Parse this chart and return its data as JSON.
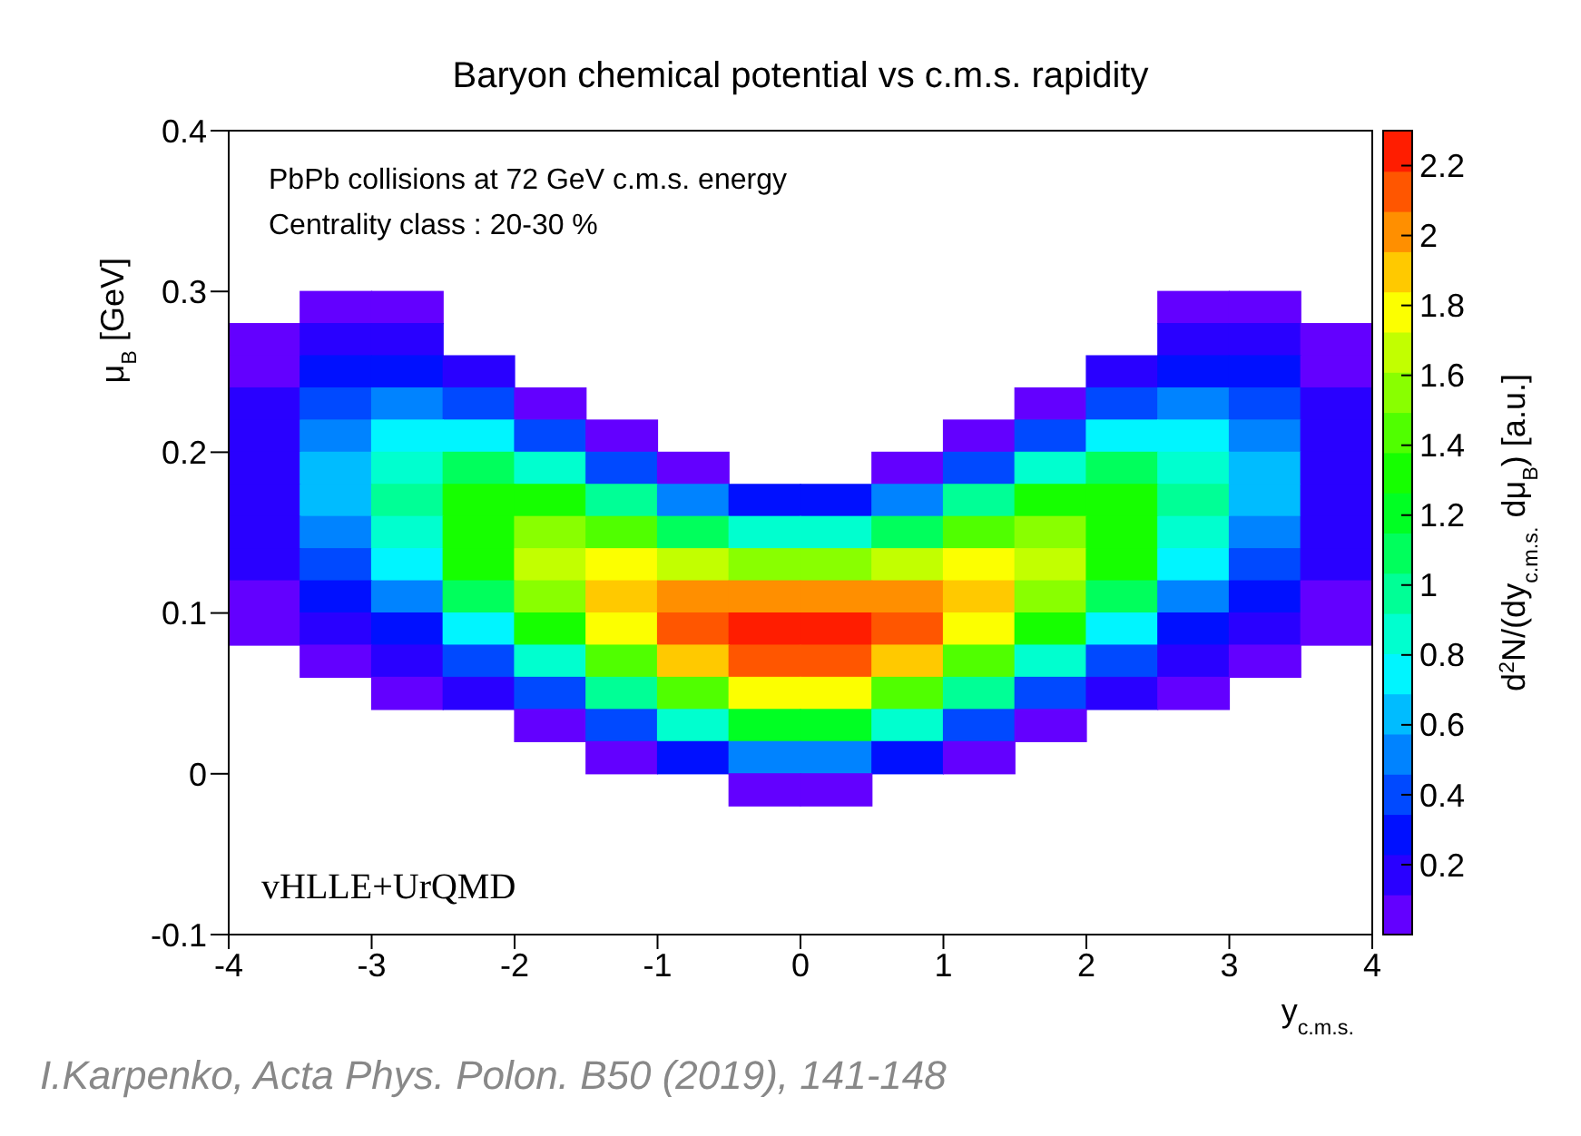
{
  "chart_data": {
    "type": "scatter",
    "title": "Baryon chemical potential vs c.m.s. rapidity",
    "xlabel": "y$_{c.m.s.}$",
    "ylabel": "μ$_{B}$  [GeV]",
    "clabel": "d$^{2}$N/(dy$_{c.m.s.}$ dμ$_{B}$)  [a.u.]",
    "annotations": [
      "PbPb collisions at 72 GeV  c.m.s. energy",
      "Centrality class : 20-30 %",
      "vHLLE+UrQMD",
      "I.Karpenko, Acta Phys. Polon. B50 (2019), 141-148"
    ],
    "marker": "square",
    "xlim": [
      -4,
      4
    ],
    "xticks": [
      -4,
      -3,
      -2,
      -1,
      0,
      1,
      2,
      3,
      4
    ],
    "ylim": [
      -0.1,
      0.4
    ],
    "yticks": [
      -0.1,
      0,
      0.1,
      0.2,
      0.3,
      0.4
    ],
    "clim": [
      0,
      2.3
    ],
    "cticks": [
      0.2,
      0.4,
      0.6,
      0.8,
      1,
      1.2,
      1.4,
      1.6,
      1.8,
      2,
      2.2
    ],
    "x": [
      -3.25,
      -2.75,
      2.75,
      3.25,
      -3.75,
      -3.25,
      -2.75,
      2.75,
      3.25,
      3.75,
      -3.75,
      -3.25,
      -2.75,
      -2.25,
      2.25,
      2.75,
      3.25,
      3.75,
      -3.75,
      -3.25,
      -2.75,
      -2.25,
      -1.75,
      1.75,
      2.25,
      2.75,
      3.25,
      3.75,
      -3.75,
      -3.25,
      -2.75,
      -2.25,
      -1.75,
      -1.25,
      1.25,
      1.75,
      2.25,
      2.75,
      3.25,
      3.75,
      -3.75,
      -3.25,
      -2.75,
      -2.25,
      -1.75,
      -1.25,
      -0.75,
      0.75,
      1.25,
      1.75,
      2.25,
      2.75,
      3.25,
      3.75,
      -3.75,
      -3.25,
      -2.75,
      -2.25,
      -1.75,
      -1.25,
      -0.75,
      -0.25,
      0.25,
      0.75,
      1.25,
      1.75,
      2.25,
      2.75,
      3.25,
      3.75,
      -3.75,
      -3.25,
      -2.75,
      -2.25,
      -1.75,
      -1.25,
      -0.75,
      -0.25,
      0.25,
      0.75,
      1.25,
      1.75,
      2.25,
      2.75,
      3.25,
      3.75,
      -3.75,
      -3.25,
      -2.75,
      -2.25,
      -1.75,
      -1.25,
      -0.75,
      -0.25,
      0.25,
      0.75,
      1.25,
      1.75,
      2.25,
      2.75,
      3.25,
      3.75,
      -3.75,
      -3.25,
      -2.75,
      -2.25,
      -1.75,
      -1.25,
      -0.75,
      -0.25,
      0.25,
      0.75,
      1.25,
      1.75,
      2.25,
      2.75,
      3.25,
      3.75,
      -3.75,
      -3.25,
      -2.75,
      -2.25,
      -1.75,
      -1.25,
      -0.75,
      -0.25,
      0.25,
      0.75,
      1.25,
      1.75,
      2.25,
      2.75,
      3.25,
      3.75,
      -3.25,
      -2.75,
      -2.25,
      -1.75,
      -1.25,
      -0.75,
      -0.25,
      0.25,
      0.75,
      1.25,
      1.75,
      2.25,
      2.75,
      3.25,
      -2.75,
      -2.25,
      -1.75,
      -1.25,
      -0.75,
      -0.25,
      0.25,
      0.75,
      1.25,
      1.75,
      2.25,
      2.75,
      -1.75,
      -1.25,
      -0.75,
      -0.25,
      0.25,
      0.75,
      1.25,
      1.75,
      -1.25,
      -0.75,
      -0.25,
      0.25,
      0.75,
      1.25,
      -0.25,
      0.25
    ],
    "values": [
      0.29,
      0.29,
      0.29,
      0.29,
      0.27,
      0.27,
      0.27,
      0.27,
      0.27,
      0.27,
      0.25,
      0.25,
      0.25,
      0.25,
      0.25,
      0.25,
      0.25,
      0.25,
      0.23,
      0.23,
      0.23,
      0.23,
      0.23,
      0.23,
      0.23,
      0.23,
      0.23,
      0.23,
      0.21,
      0.21,
      0.21,
      0.21,
      0.21,
      0.21,
      0.21,
      0.21,
      0.21,
      0.21,
      0.21,
      0.21,
      0.19,
      0.19,
      0.19,
      0.19,
      0.19,
      0.19,
      0.19,
      0.19,
      0.19,
      0.19,
      0.19,
      0.19,
      0.19,
      0.19,
      0.17,
      0.17,
      0.17,
      0.17,
      0.17,
      0.17,
      0.17,
      0.17,
      0.17,
      0.17,
      0.17,
      0.17,
      0.17,
      0.17,
      0.17,
      0.17,
      0.15,
      0.15,
      0.15,
      0.15,
      0.15,
      0.15,
      0.15,
      0.15,
      0.15,
      0.15,
      0.15,
      0.15,
      0.15,
      0.15,
      0.15,
      0.15,
      0.13,
      0.13,
      0.13,
      0.13,
      0.13,
      0.13,
      0.13,
      0.13,
      0.13,
      0.13,
      0.13,
      0.13,
      0.13,
      0.13,
      0.13,
      0.13,
      0.11,
      0.11,
      0.11,
      0.11,
      0.11,
      0.11,
      0.11,
      0.11,
      0.11,
      0.11,
      0.11,
      0.11,
      0.11,
      0.11,
      0.11,
      0.11,
      0.09,
      0.09,
      0.09,
      0.09,
      0.09,
      0.09,
      0.09,
      0.09,
      0.09,
      0.09,
      0.09,
      0.09,
      0.09,
      0.09,
      0.09,
      0.09,
      0.07,
      0.07,
      0.07,
      0.07,
      0.07,
      0.07,
      0.07,
      0.07,
      0.07,
      0.07,
      0.07,
      0.07,
      0.07,
      0.07,
      0.05,
      0.05,
      0.05,
      0.05,
      0.05,
      0.05,
      0.05,
      0.05,
      0.05,
      0.05,
      0.05,
      0.05,
      0.03,
      0.03,
      0.03,
      0.03,
      0.03,
      0.03,
      0.03,
      0.03,
      0.01,
      0.01,
      0.01,
      0.01,
      0.01,
      0.01,
      -0.01,
      -0.01
    ],
    "cvalues": [
      0.03,
      0.01,
      0.01,
      0.03,
      0.02,
      0.14,
      0.12,
      0.12,
      0.14,
      0.02,
      0.07,
      0.28,
      0.33,
      0.13,
      0.13,
      0.33,
      0.28,
      0.07,
      0.13,
      0.42,
      0.56,
      0.42,
      0.1,
      0.1,
      0.42,
      0.56,
      0.42,
      0.13,
      0.17,
      0.53,
      0.77,
      0.76,
      0.43,
      0.06,
      0.06,
      0.43,
      0.76,
      0.77,
      0.53,
      0.17,
      0.2,
      0.6,
      0.9,
      1.07,
      0.87,
      0.43,
      0.08,
      0.08,
      0.43,
      0.87,
      1.07,
      0.9,
      0.6,
      0.2,
      0.2,
      0.6,
      0.95,
      1.27,
      1.27,
      0.96,
      0.52,
      0.27,
      0.27,
      0.52,
      0.96,
      1.27,
      1.27,
      0.95,
      0.6,
      0.2,
      0.17,
      0.53,
      0.9,
      1.35,
      1.55,
      1.46,
      1.14,
      0.86,
      0.86,
      1.14,
      1.46,
      1.55,
      1.35,
      0.9,
      0.53,
      0.17,
      0.13,
      0.42,
      0.77,
      1.27,
      1.65,
      1.83,
      1.7,
      1.51,
      1.51,
      1.7,
      1.83,
      1.65,
      1.27,
      0.77,
      0.42,
      0.13,
      0.07,
      0.28,
      0.56,
      1.07,
      1.55,
      1.95,
      2.06,
      2.0,
      2.0,
      2.06,
      1.95,
      1.55,
      1.07,
      0.56,
      0.28,
      0.07,
      0.02,
      0.14,
      0.33,
      0.76,
      1.27,
      1.83,
      2.15,
      2.24,
      2.24,
      2.15,
      1.83,
      1.27,
      0.76,
      0.33,
      0.14,
      0.02,
      0.03,
      0.12,
      0.42,
      0.87,
      1.46,
      1.91,
      2.16,
      2.16,
      1.91,
      1.46,
      0.87,
      0.42,
      0.12,
      0.03,
      0.01,
      0.13,
      0.43,
      0.96,
      1.44,
      1.78,
      1.78,
      1.44,
      0.96,
      0.43,
      0.13,
      0.01,
      0.1,
      0.43,
      0.82,
      1.19,
      1.19,
      0.82,
      0.43,
      0.1,
      0.06,
      0.26,
      0.54,
      0.54,
      0.26,
      0.06,
      0.08,
      0.08
    ]
  }
}
